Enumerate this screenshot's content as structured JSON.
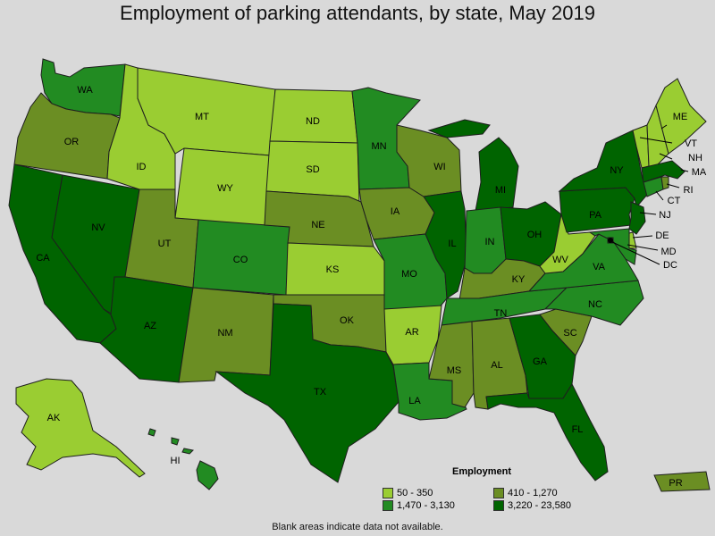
{
  "title": "Employment of parking attendants, by state, May 2019",
  "footnote": "Blank areas indicate data not available.",
  "legend": {
    "title": "Employment",
    "items": [
      {
        "label": "50 - 350",
        "color": "#9acd32"
      },
      {
        "label": "410 - 1,270",
        "color": "#6b8e23"
      },
      {
        "label": "1,470 - 3,130",
        "color": "#228b22"
      },
      {
        "label": "3,220 - 23,580",
        "color": "#006400"
      }
    ]
  },
  "colors": {
    "c1": "#9acd32",
    "c2": "#6b8e23",
    "c3": "#228b22",
    "c4": "#006400"
  },
  "states": [
    {
      "abbr": "WA",
      "cls": 3
    },
    {
      "abbr": "OR",
      "cls": 2
    },
    {
      "abbr": "CA",
      "cls": 4
    },
    {
      "abbr": "NV",
      "cls": 4
    },
    {
      "abbr": "ID",
      "cls": 1
    },
    {
      "abbr": "MT",
      "cls": 1
    },
    {
      "abbr": "WY",
      "cls": 1
    },
    {
      "abbr": "UT",
      "cls": 2
    },
    {
      "abbr": "AZ",
      "cls": 4
    },
    {
      "abbr": "CO",
      "cls": 3
    },
    {
      "abbr": "NM",
      "cls": 2
    },
    {
      "abbr": "ND",
      "cls": 1
    },
    {
      "abbr": "SD",
      "cls": 1
    },
    {
      "abbr": "NE",
      "cls": 2
    },
    {
      "abbr": "KS",
      "cls": 1
    },
    {
      "abbr": "OK",
      "cls": 2
    },
    {
      "abbr": "TX",
      "cls": 4
    },
    {
      "abbr": "MN",
      "cls": 3
    },
    {
      "abbr": "IA",
      "cls": 2
    },
    {
      "abbr": "MO",
      "cls": 3
    },
    {
      "abbr": "AR",
      "cls": 1
    },
    {
      "abbr": "LA",
      "cls": 3
    },
    {
      "abbr": "WI",
      "cls": 2
    },
    {
      "abbr": "IL",
      "cls": 4
    },
    {
      "abbr": "MI",
      "cls": 4
    },
    {
      "abbr": "IN",
      "cls": 3
    },
    {
      "abbr": "OH",
      "cls": 4
    },
    {
      "abbr": "KY",
      "cls": 2
    },
    {
      "abbr": "TN",
      "cls": 3
    },
    {
      "abbr": "MS",
      "cls": 2
    },
    {
      "abbr": "AL",
      "cls": 2
    },
    {
      "abbr": "GA",
      "cls": 4
    },
    {
      "abbr": "FL",
      "cls": 4
    },
    {
      "abbr": "SC",
      "cls": 2
    },
    {
      "abbr": "NC",
      "cls": 3
    },
    {
      "abbr": "VA",
      "cls": 3
    },
    {
      "abbr": "WV",
      "cls": 1
    },
    {
      "abbr": "PA",
      "cls": 4
    },
    {
      "abbr": "NY",
      "cls": 4
    },
    {
      "abbr": "VT",
      "cls": 1
    },
    {
      "abbr": "NH",
      "cls": 1
    },
    {
      "abbr": "ME",
      "cls": 1
    },
    {
      "abbr": "MA",
      "cls": 4
    },
    {
      "abbr": "RI",
      "cls": 2
    },
    {
      "abbr": "CT",
      "cls": 3
    },
    {
      "abbr": "NJ",
      "cls": 4
    },
    {
      "abbr": "DE",
      "cls": 1
    },
    {
      "abbr": "MD",
      "cls": 3
    },
    {
      "abbr": "DC",
      "cls": 4
    },
    {
      "abbr": "AK",
      "cls": 1
    },
    {
      "abbr": "HI",
      "cls": 3
    },
    {
      "abbr": "PR",
      "cls": 2
    }
  ]
}
